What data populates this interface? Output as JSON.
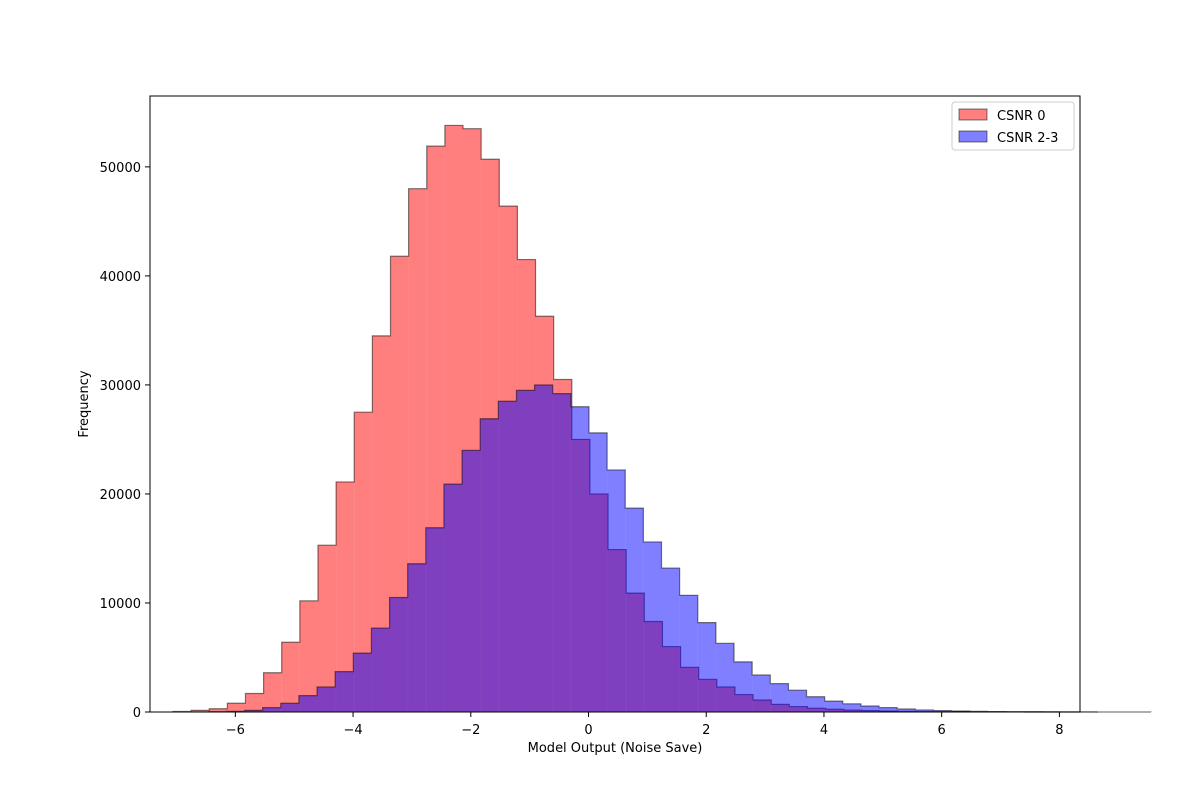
{
  "chart_data": {
    "type": "histogram",
    "title": "",
    "xlabel": "Model Output (Noise Save)",
    "ylabel": "Frequency",
    "xlim": [
      -7.45,
      8.35
    ],
    "ylim": [
      0,
      56500
    ],
    "xticks": [
      -6,
      -4,
      -2,
      0,
      2,
      4,
      6,
      8
    ],
    "yticks": [
      0,
      10000,
      20000,
      30000,
      40000,
      50000
    ],
    "grid": false,
    "legend_position": "top-right",
    "series": [
      {
        "name": "CSNR 0",
        "color": "#ff0000",
        "alpha": 0.5,
        "bin_start": -7.06,
        "bin_width": 0.308,
        "counts": [
          50,
          150,
          300,
          800,
          1700,
          3600,
          6400,
          10200,
          15300,
          21100,
          27500,
          34500,
          41800,
          48000,
          51900,
          53800,
          53500,
          50700,
          46400,
          41500,
          36300,
          30500,
          25000,
          20000,
          14900,
          10900,
          8300,
          6000,
          4100,
          3000,
          2300,
          1600,
          1100,
          700,
          500,
          350,
          250,
          180,
          130,
          90,
          60,
          40,
          30,
          20,
          15,
          10,
          5,
          3,
          2,
          1,
          0
        ]
      },
      {
        "name": "CSNR 2-3",
        "color": "#0000ff",
        "alpha": 0.5,
        "bin_start": -6.46,
        "bin_width": 0.308,
        "counts": [
          20,
          60,
          150,
          400,
          800,
          1500,
          2300,
          3700,
          5400,
          7700,
          10500,
          13600,
          16900,
          20900,
          24000,
          26900,
          28500,
          29500,
          30000,
          29200,
          28000,
          25600,
          22200,
          18700,
          15600,
          13200,
          10700,
          8200,
          6300,
          4600,
          3400,
          2600,
          2000,
          1400,
          1000,
          750,
          550,
          400,
          280,
          190,
          130,
          90,
          60,
          40,
          30,
          20,
          12,
          8,
          5,
          3,
          2,
          1
        ]
      }
    ]
  }
}
